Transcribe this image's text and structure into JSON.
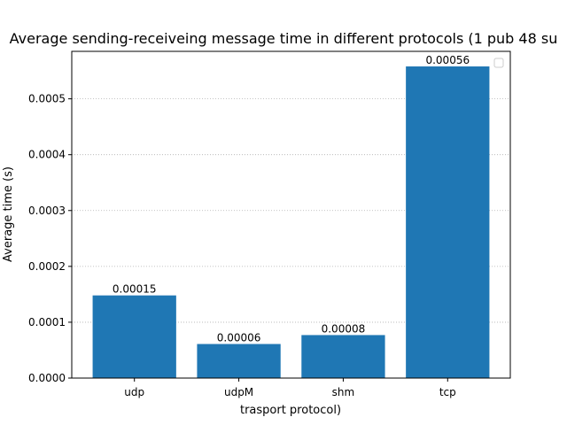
{
  "chart_data": {
    "type": "bar",
    "title": "Average sending-receiveing message time in different protocols (1 pub 48 su",
    "xlabel": "trasport protocol)",
    "ylabel": "Average time (s)",
    "categories": [
      "udp",
      "udpM",
      "shm",
      "tcp"
    ],
    "values": [
      0.000148,
      6.1e-05,
      7.7e-05,
      0.000558
    ],
    "data_labels": [
      "0.00015",
      "0.00006",
      "0.00008",
      "0.00056"
    ],
    "ylim": [
      0,
      0.000585
    ],
    "yticks": [
      0,
      0.0001,
      0.0002,
      0.0003,
      0.0004,
      0.0005
    ],
    "ytick_labels": [
      "0.0000",
      "0.0001",
      "0.0002",
      "0.0003",
      "0.0004",
      "0.0005"
    ],
    "grid": "y-dotted",
    "legend": "top-right (empty)",
    "colors": {
      "bar": "#1f77b4",
      "grid": "#b0b0b0",
      "axes": "#000000"
    }
  }
}
